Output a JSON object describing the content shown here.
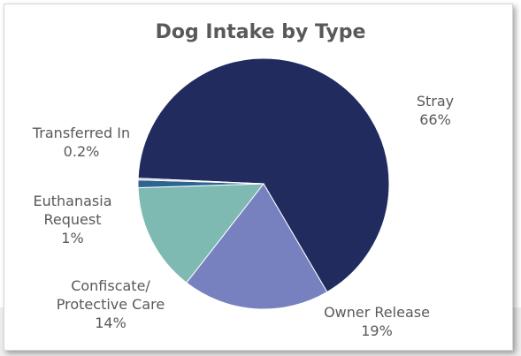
{
  "chart_data": {
    "type": "pie",
    "title": "Dog Intake by Type",
    "slices": [
      {
        "label_lines": [
          "Stray"
        ],
        "value_text": "66%",
        "value": 66,
        "color": "#212b5e"
      },
      {
        "label_lines": [
          "Owner Release"
        ],
        "value_text": "19%",
        "value": 19,
        "color": "#7781bf"
      },
      {
        "label_lines": [
          "Confiscate/",
          "Protective Care"
        ],
        "value_text": "14%",
        "value": 14,
        "color": "#7ebab2"
      },
      {
        "label_lines": [
          "Euthanasia",
          "Request"
        ],
        "value_text": "1%",
        "value": 1,
        "color": "#2c6592"
      },
      {
        "label_lines": [
          "Transferred In"
        ],
        "value_text": "0.2%",
        "value": 0.2,
        "color": "#bcbcbc"
      }
    ],
    "legend": "none"
  }
}
